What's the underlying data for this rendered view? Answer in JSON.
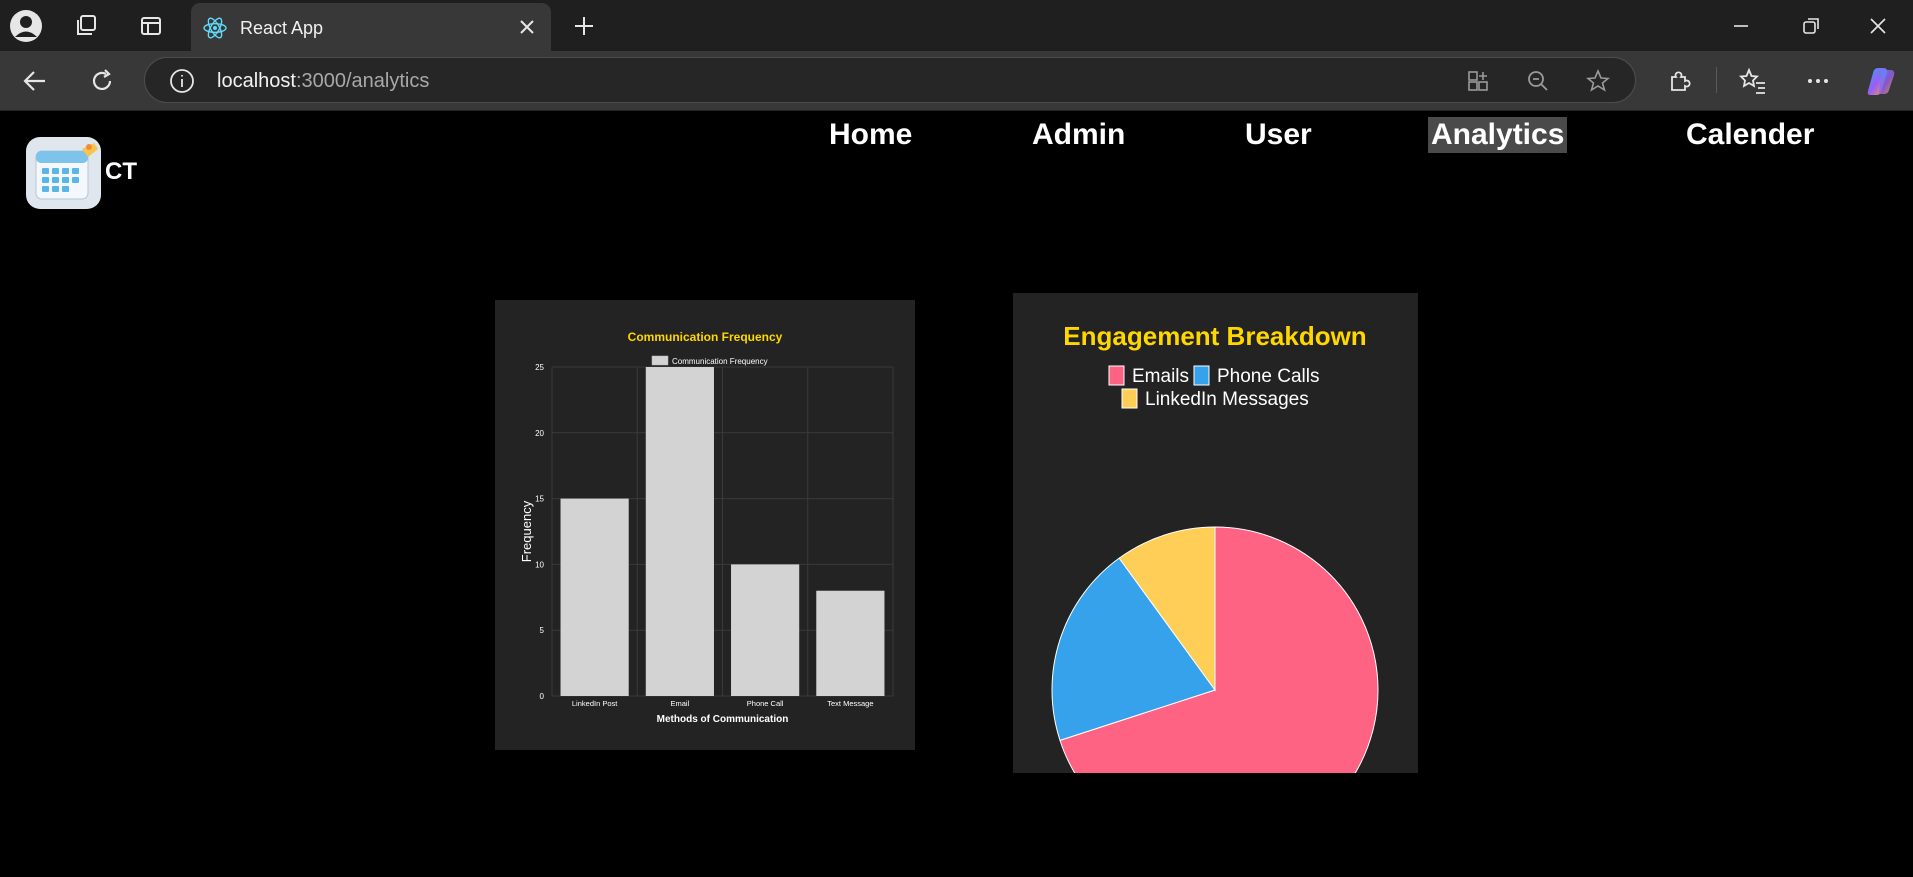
{
  "browser": {
    "tab_title": "React App",
    "url_host": "localhost",
    "url_rest": ":3000/analytics"
  },
  "app": {
    "logo_text": "CT",
    "nav": [
      {
        "label": "Home",
        "active": false
      },
      {
        "label": "Admin",
        "active": false
      },
      {
        "label": "User",
        "active": false
      },
      {
        "label": "Analytics",
        "active": true
      },
      {
        "label": "Calender",
        "active": false
      }
    ]
  },
  "colors": {
    "title_yellow": "#ffd700",
    "bar_fill": "#d3d3d3",
    "pie_emails": "#ff6384",
    "pie_phone": "#36a2eb",
    "pie_linkedin": "#ffce56"
  },
  "chart_data": [
    {
      "type": "bar",
      "title": "Communication Frequency",
      "legend": [
        "Communication Frequency"
      ],
      "categories": [
        "LinkedIn Post",
        "Email",
        "Phone Call",
        "Text Message"
      ],
      "series": [
        {
          "name": "Communication Frequency",
          "values": [
            15,
            25,
            10,
            8
          ]
        }
      ],
      "xlabel": "Methods of Communication",
      "ylabel": "Frequency",
      "ylim": [
        0,
        25
      ],
      "yticks": [
        "0",
        "5",
        "10",
        "15",
        "20",
        "25"
      ],
      "grid": true,
      "legend_position": "top"
    },
    {
      "type": "pie",
      "title": "Engagement Breakdown",
      "labels": [
        "Emails",
        "Phone Calls",
        "LinkedIn Messages"
      ],
      "values": [
        70,
        20,
        10
      ],
      "colors": [
        "#ff6384",
        "#36a2eb",
        "#ffce56"
      ],
      "legend_position": "top"
    }
  ]
}
